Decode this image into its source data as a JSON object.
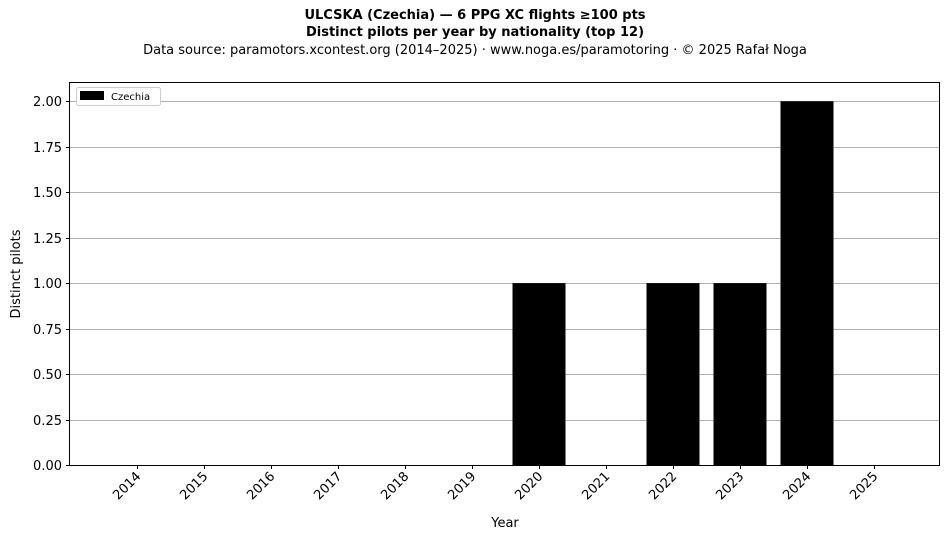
{
  "chart_data": {
    "type": "bar",
    "title": "ULCSKA (Czechia)  —  6 PPG XC flights ≥100 pts",
    "subtitle": "Distinct pilots per year by nationality (top 12)",
    "source": "Data source: paramotors.xcontest.org (2014–2025)  ·  www.noga.es/paramotoring  ·  © 2025 Rafał Noga",
    "xlabel": "Year",
    "ylabel": "Distinct pilots",
    "categories": [
      "2014",
      "2015",
      "2016",
      "2017",
      "2018",
      "2019",
      "2020",
      "2021",
      "2022",
      "2023",
      "2024",
      "2025"
    ],
    "series": [
      {
        "name": "Czechia",
        "color": "#000000",
        "values": [
          0,
          0,
          0,
          0,
          0,
          0,
          1,
          0,
          1,
          1,
          2,
          0
        ]
      }
    ],
    "ylim": [
      0,
      2.1
    ],
    "yticks": [
      "0.00",
      "0.25",
      "0.50",
      "0.75",
      "1.00",
      "1.25",
      "1.50",
      "1.75",
      "2.00"
    ],
    "grid": "y",
    "legend": "top-left"
  }
}
